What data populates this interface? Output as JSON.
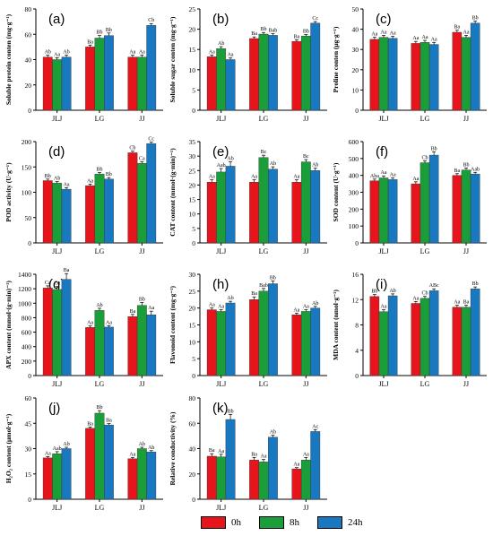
{
  "colors": {
    "0h": "#e8141c",
    "8h": "#1a9e3a",
    "24h": "#1878c0"
  },
  "legend": [
    {
      "key": "0h",
      "label": "0h"
    },
    {
      "key": "8h",
      "label": "8h"
    },
    {
      "key": "24h",
      "label": "24h"
    }
  ],
  "chart_data": [
    {
      "type": "bar",
      "panel": "(a)",
      "ylabel": "Soluble protein conten (mg·g⁻¹)",
      "ylim": [
        0,
        80
      ],
      "yticks": [
        0,
        20,
        40,
        60,
        80
      ],
      "categories": [
        "JLJ",
        "LG",
        "JJ"
      ],
      "series": [
        {
          "name": "0h",
          "values": [
            42,
            50,
            42
          ]
        },
        {
          "name": "8h",
          "values": [
            40,
            57,
            42
          ]
        },
        {
          "name": "24h",
          "values": [
            42,
            59,
            67
          ]
        }
      ],
      "errors": [
        [
          1.5,
          1.5,
          1.5
        ],
        [
          1.5,
          2,
          1.5
        ],
        [
          1.5,
          2,
          1.5
        ]
      ],
      "labels": [
        [
          "Ab",
          "Ba",
          "Aa"
        ],
        [
          "Aa",
          "Bb",
          "Aa"
        ],
        [
          "Ab",
          "Bb",
          "Cb"
        ]
      ]
    },
    {
      "type": "bar",
      "panel": "(b)",
      "ylabel": "Soluble sugar conten (mg·g⁻¹)",
      "ylim": [
        0,
        25
      ],
      "yticks": [
        0,
        5,
        10,
        15,
        20,
        25
      ],
      "categories": [
        "JLJ",
        "LG",
        "JJ"
      ],
      "series": [
        {
          "name": "0h",
          "values": [
            13.2,
            17.7,
            17
          ]
        },
        {
          "name": "8h",
          "values": [
            15.2,
            18.8,
            18.3
          ]
        },
        {
          "name": "24h",
          "values": [
            12.5,
            18.5,
            21.5
          ]
        }
      ],
      "errors": [
        [
          0.4,
          0.4,
          0.4
        ],
        [
          0.5,
          0.4,
          0.4
        ],
        [
          0.4,
          0.4,
          0.4
        ]
      ],
      "labels": [
        [
          "Aa",
          "Ba",
          "Ba"
        ],
        [
          "Ab",
          "Bb",
          "Bb"
        ],
        [
          "Aa",
          "Bab",
          "Cc"
        ]
      ]
    },
    {
      "type": "bar",
      "panel": "(c)",
      "ylabel": "Proline conten (μg·g⁻¹)",
      "ylim": [
        0,
        50
      ],
      "yticks": [
        0,
        10,
        20,
        30,
        40,
        50
      ],
      "categories": [
        "JLJ",
        "LG",
        "JJ"
      ],
      "series": [
        {
          "name": "0h",
          "values": [
            35,
            33,
            38.5
          ]
        },
        {
          "name": "8h",
          "values": [
            36,
            33.5,
            36
          ]
        },
        {
          "name": "24h",
          "values": [
            35.5,
            32.5,
            43
          ]
        }
      ],
      "errors": [
        [
          1,
          1,
          1
        ],
        [
          1,
          1,
          1
        ],
        [
          1,
          1,
          1
        ]
      ],
      "labels": [
        [
          "Aa",
          "Aa",
          "Ba"
        ],
        [
          "Aa",
          "Aa",
          "Aa"
        ],
        [
          "Aa",
          "Aa",
          "Bb"
        ]
      ]
    },
    {
      "type": "bar",
      "panel": "(d)",
      "ylabel": "POD activity (U·g⁻¹)",
      "ylim": [
        0,
        200
      ],
      "yticks": [
        0,
        50,
        100,
        150,
        200
      ],
      "categories": [
        "JLJ",
        "LG",
        "JJ"
      ],
      "series": [
        {
          "name": "0h",
          "values": [
            123,
            113,
            178
          ]
        },
        {
          "name": "8h",
          "values": [
            118,
            136,
            157
          ]
        },
        {
          "name": "24h",
          "values": [
            106,
            126,
            196
          ]
        }
      ],
      "errors": [
        [
          3,
          3,
          3
        ],
        [
          3,
          3,
          3
        ],
        [
          3,
          3,
          3
        ]
      ],
      "labels": [
        [
          "Bb",
          "Aa",
          "Cb"
        ],
        [
          "Ab",
          "Bb",
          "Ca"
        ],
        [
          "Aa",
          "Bb",
          "Cc"
        ]
      ]
    },
    {
      "type": "bar",
      "panel": "(e)",
      "ylabel": "CAT content (mmol·(g·min)⁻¹)",
      "ylim": [
        0,
        35
      ],
      "yticks": [
        0,
        5,
        10,
        15,
        20,
        25,
        30,
        35
      ],
      "categories": [
        "JLJ",
        "LG",
        "JJ"
      ],
      "series": [
        {
          "name": "0h",
          "values": [
            21,
            21,
            21
          ]
        },
        {
          "name": "8h",
          "values": [
            24.5,
            29.5,
            28
          ]
        },
        {
          "name": "24h",
          "values": [
            26.5,
            25.5,
            25
          ]
        }
      ],
      "errors": [
        [
          0.8,
          0.8,
          0.8
        ],
        [
          1.2,
          0.8,
          0.8
        ],
        [
          1.5,
          0.8,
          0.8
        ]
      ],
      "labels": [
        [
          "Aa",
          "Aa",
          "Aa"
        ],
        [
          "Aab",
          "Bc",
          "Bc"
        ],
        [
          "Ab",
          "Ab",
          "Ab"
        ]
      ]
    },
    {
      "type": "bar",
      "panel": "(f)",
      "ylabel": "SOD content (U·g⁻¹)",
      "ylim": [
        0,
        600
      ],
      "yticks": [
        0,
        100,
        200,
        300,
        400,
        500,
        600
      ],
      "categories": [
        "JLJ",
        "LG",
        "JJ"
      ],
      "series": [
        {
          "name": "0h",
          "values": [
            368,
            350,
            400
          ]
        },
        {
          "name": "8h",
          "values": [
            385,
            475,
            432
          ]
        },
        {
          "name": "24h",
          "values": [
            375,
            520,
            408
          ]
        }
      ],
      "errors": [
        [
          10,
          12,
          10
        ],
        [
          12,
          12,
          12
        ],
        [
          10,
          20,
          10
        ]
      ],
      "labels": [
        [
          "Aba",
          "Aa",
          "Ba"
        ],
        [
          "Aa",
          "Cb",
          "Bb"
        ],
        [
          "Aa",
          "Bb",
          "Aab"
        ]
      ]
    },
    {
      "type": "bar",
      "panel": "(g)",
      "ylabel": "APX content (mmol·(g·min)⁻¹)",
      "ylim": [
        0,
        1400
      ],
      "yticks": [
        0,
        200,
        400,
        600,
        800,
        1000,
        1200,
        1400
      ],
      "categories": [
        "JLJ",
        "LG",
        "JJ"
      ],
      "series": [
        {
          "name": "0h",
          "values": [
            1210,
            665,
            815
          ]
        },
        {
          "name": "8h",
          "values": [
            1190,
            900,
            970
          ]
        },
        {
          "name": "24h",
          "values": [
            1330,
            670,
            840
          ]
        }
      ],
      "errors": [
        [
          30,
          20,
          30
        ],
        [
          40,
          30,
          40
        ],
        [
          80,
          20,
          50
        ]
      ],
      "labels": [
        [
          "Ca",
          "Aa",
          "Ba"
        ],
        [
          "Ca",
          "Ab",
          "Bb"
        ],
        [
          "Ba",
          "Aa",
          "Aa"
        ]
      ]
    },
    {
      "type": "bar",
      "panel": "(h)",
      "ylabel": "Flavonoid content (mg·g⁻¹)",
      "ylim": [
        0,
        30
      ],
      "yticks": [
        0,
        5,
        10,
        15,
        20,
        25,
        30
      ],
      "categories": [
        "JLJ",
        "LG",
        "JJ"
      ],
      "series": [
        {
          "name": "0h",
          "values": [
            19.5,
            22.5,
            18
          ]
        },
        {
          "name": "8h",
          "values": [
            19,
            25,
            19
          ]
        },
        {
          "name": "24h",
          "values": [
            21.5,
            27.2,
            20
          ]
        }
      ],
      "errors": [
        [
          0.5,
          0.8,
          0.5
        ],
        [
          0.5,
          0.8,
          0.5
        ],
        [
          0.5,
          0.8,
          0.5
        ]
      ],
      "labels": [
        [
          "Aa",
          "Ba",
          "Aa"
        ],
        [
          "Aa",
          "Bab",
          "Aa"
        ],
        [
          "Ab",
          "Bb",
          "Ab"
        ]
      ]
    },
    {
      "type": "bar",
      "panel": "(i)",
      "ylabel": "MDA content (nmol·g⁻¹)",
      "ylim": [
        0,
        16
      ],
      "yticks": [
        0,
        4,
        8,
        12,
        16
      ],
      "categories": [
        "JLJ",
        "LG",
        "JJ"
      ],
      "series": [
        {
          "name": "0h",
          "values": [
            12.5,
            11.4,
            10.8
          ]
        },
        {
          "name": "8h",
          "values": [
            10.1,
            12.2,
            10.8
          ]
        },
        {
          "name": "24h",
          "values": [
            12.6,
            13.4,
            13.7
          ]
        }
      ],
      "errors": [
        [
          0.3,
          0.3,
          0.3
        ],
        [
          0.3,
          0.3,
          0.3
        ],
        [
          0.3,
          0.3,
          0.3
        ]
      ],
      "labels": [
        [
          "Bb",
          "Aa",
          "Aa"
        ],
        [
          "Aa",
          "Cb",
          "Ba"
        ],
        [
          "Ab",
          "ABc",
          "Bb"
        ]
      ]
    },
    {
      "type": "bar",
      "panel": "(j)",
      "ylabel": "H₂O₂ content (μmol·g⁻¹)",
      "ylim": [
        0,
        60
      ],
      "yticks": [
        0,
        15,
        30,
        45,
        60
      ],
      "categories": [
        "JLJ",
        "LG",
        "JJ"
      ],
      "series": [
        {
          "name": "0h",
          "values": [
            24.5,
            42,
            24
          ]
        },
        {
          "name": "8h",
          "values": [
            27,
            51,
            30
          ]
        },
        {
          "name": "24h",
          "values": [
            30,
            44,
            28
          ]
        }
      ],
      "errors": [
        [
          0.8,
          0.8,
          0.8
        ],
        [
          1.2,
          1.5,
          0.8
        ],
        [
          0.8,
          0.8,
          0.8
        ]
      ],
      "labels": [
        [
          "Aa",
          "Ba",
          "Aa"
        ],
        [
          "Aab",
          "Bb",
          "Ab"
        ],
        [
          "Ab",
          "Ba",
          "Ab"
        ]
      ]
    },
    {
      "type": "bar",
      "panel": "(k)",
      "ylabel": "Relative conductivity (%)",
      "ylim": [
        0,
        80
      ],
      "yticks": [
        0,
        20,
        40,
        60,
        80
      ],
      "categories": [
        "JLJ",
        "LG",
        "JJ"
      ],
      "series": [
        {
          "name": "0h",
          "values": [
            34,
            31,
            24
          ]
        },
        {
          "name": "8h",
          "values": [
            33.5,
            29.5,
            31
          ]
        },
        {
          "name": "24h",
          "values": [
            63,
            49,
            53.5
          ]
        }
      ],
      "errors": [
        [
          2,
          2,
          1
        ],
        [
          2,
          2,
          2
        ],
        [
          4,
          1.5,
          1.5
        ]
      ],
      "labels": [
        [
          "Ba",
          "Ba",
          "Aa"
        ],
        [
          "Aa",
          "Aa",
          "Aa"
        ],
        [
          "Bb",
          "Ab",
          "Ac"
        ]
      ]
    }
  ]
}
